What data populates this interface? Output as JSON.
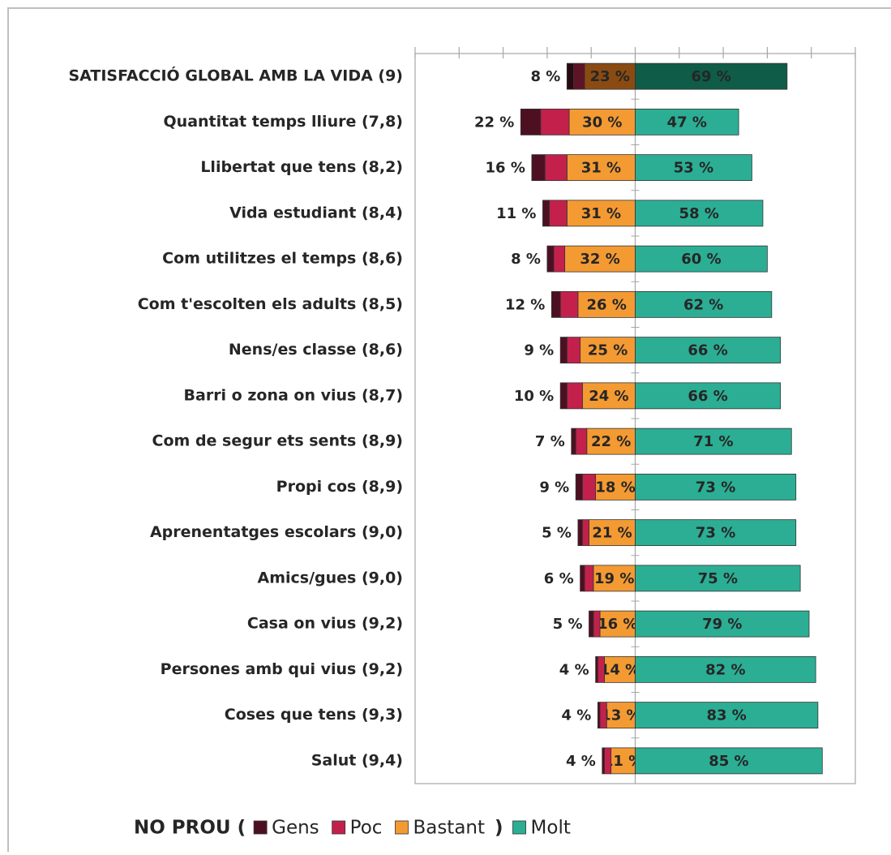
{
  "chart_data": {
    "type": "diverging-bar",
    "categories": [
      "SATISFACCIÓ GLOBAL AMB LA VIDA (9)",
      "Quantitat temps lliure (7,8)",
      "Llibertat que tens (8,2)",
      "Vida estudiant (8,4)",
      "Com utilitzes el temps (8,6)",
      "Com t'escolten els adults (8,5)",
      "Nens/es classe (8,6)",
      "Barri o zona on vius (8,7)",
      "Com de segur ets sents (8,9)",
      "Propi cos (8,9)",
      "Aprenentatges escolars (9,0)",
      "Amics/gues (9,0)",
      "Casa on vius (9,2)",
      "Persones amb qui vius (9,2)",
      "Coses que tens (9,3)",
      "Salut (9,4)"
    ],
    "series": [
      {
        "name": "Gens",
        "color": "#4d1022",
        "side": "left",
        "values": [
          3,
          9,
          6,
          3,
          3,
          4,
          3,
          3,
          2,
          3,
          2,
          2,
          2,
          1,
          1,
          1
        ]
      },
      {
        "name": "Poc",
        "color": "#c3214c",
        "side": "left",
        "values": [
          5,
          13,
          10,
          8,
          5,
          8,
          6,
          7,
          5,
          6,
          3,
          4,
          3,
          3,
          3,
          3
        ]
      },
      {
        "name": "Bastant",
        "color": "#f49a33",
        "side": "left",
        "values": [
          23,
          30,
          31,
          31,
          32,
          26,
          25,
          24,
          22,
          18,
          21,
          19,
          16,
          14,
          13,
          11
        ],
        "value_labels": [
          "23 %",
          "30 %",
          "31 %",
          "31 %",
          "32 %",
          "26 %",
          "25 %",
          "24 %",
          "22 %",
          "18 %",
          "21 %",
          "19 %",
          "16 %",
          "14 %",
          "13 %",
          "11 %"
        ]
      },
      {
        "name": "Molt",
        "color": "#2bae94",
        "side": "right",
        "values": [
          69,
          47,
          53,
          58,
          60,
          62,
          66,
          66,
          71,
          73,
          73,
          75,
          79,
          82,
          83,
          85
        ],
        "value_labels": [
          "69 %",
          "47 %",
          "53 %",
          "58 %",
          "60 %",
          "62 %",
          "66 %",
          "66 %",
          "71 %",
          "73 %",
          "73 %",
          "75 %",
          "79 %",
          "82 %",
          "83 %",
          "85 %"
        ]
      }
    ],
    "no_prou": {
      "values": [
        8,
        22,
        16,
        11,
        8,
        12,
        9,
        10,
        7,
        9,
        5,
        6,
        5,
        4,
        4,
        4
      ],
      "value_labels": [
        "8 %",
        "22 %",
        "16 %",
        "11 %",
        "8 %",
        "12 %",
        "9 %",
        "10 %",
        "7 %",
        "9 %",
        "5 %",
        "6 %",
        "5 %",
        "4 %",
        "4 %",
        "4 %"
      ]
    },
    "highlight": {
      "index": 0,
      "colors": [
        "#2a0a12",
        "#5e1426",
        "#8a4b12",
        "#0f5c48"
      ]
    },
    "legend_prefix": "NO PROU (",
    "legend_close": ")",
    "xlim": [
      -100,
      100
    ],
    "xticks": [
      -100,
      -80,
      -60,
      -40,
      -20,
      0,
      20,
      40,
      60,
      80,
      100
    ]
  }
}
